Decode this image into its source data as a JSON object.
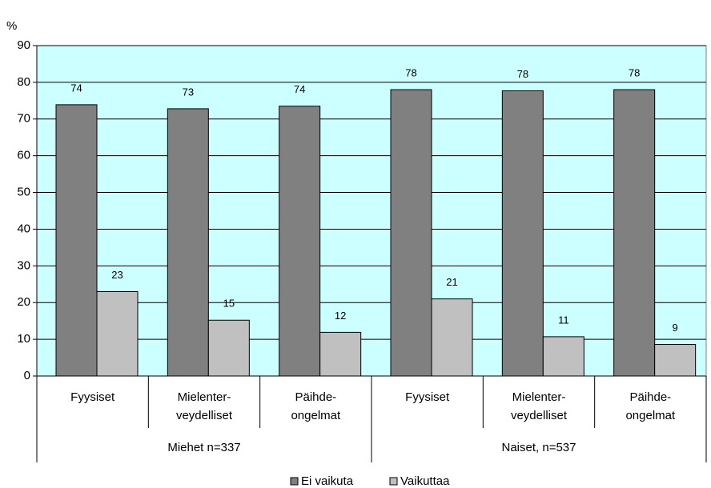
{
  "chart_data": {
    "type": "bar",
    "y_label": "%",
    "categories": [
      [
        "Fyysiset"
      ],
      [
        "Mielenter-",
        "veydelliset"
      ],
      [
        "Päihde-",
        "ongelmat"
      ],
      [
        "Fyysiset"
      ],
      [
        "Mielenter-",
        "veydelliset"
      ],
      [
        "Päihde-",
        "ongelmat"
      ]
    ],
    "groups": [
      "Miehet n=337",
      "Naiset, n=537"
    ],
    "series": [
      {
        "name": "Ei vaikuta",
        "color": "#808080",
        "values": [
          73.9,
          72.8,
          73.5,
          78.0,
          77.7,
          78.0
        ],
        "value_labels": [
          "74",
          "73",
          "74",
          "78",
          "78",
          "78"
        ]
      },
      {
        "name": "Vaikuttaa",
        "color": "#c0c0c0",
        "values": [
          23.0,
          15.2,
          11.9,
          21.0,
          10.7,
          8.6
        ],
        "value_labels": [
          "23",
          "15",
          "12",
          "21",
          "11",
          "9"
        ]
      }
    ],
    "ylim": [
      0,
      90
    ],
    "yticks": [
      0,
      10,
      20,
      30,
      40,
      50,
      60,
      70,
      80,
      90
    ],
    "grid": true,
    "plot_background": "#ccffff",
    "legend": "bottom"
  }
}
